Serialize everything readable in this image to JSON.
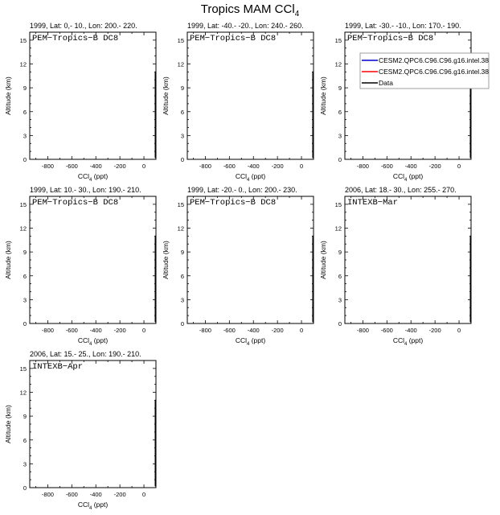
{
  "figure": {
    "title": "Tropics MAM CCl",
    "title_sub": "4"
  },
  "chart_data": [
    {
      "type": "line",
      "header": "1999, Lat: 0,- 10., Lon: 200.- 220.",
      "campaign": "PEM−Tropics−B DC8",
      "xlabel": "CCl",
      "xlabel_sub": "4",
      "xlabel_unit": " (ppt)",
      "ylabel": "Altitude (km)",
      "xlim": [
        -950,
        100
      ],
      "ylim": [
        0,
        16
      ],
      "xticks": [
        -800,
        -600,
        -400,
        -200,
        0
      ],
      "yticks": [
        0,
        3,
        6,
        9,
        12,
        15
      ],
      "series": [
        {
          "name": "Data",
          "color": "#000000",
          "x": [
            95,
            95,
            95,
            95,
            95,
            95,
            95,
            95
          ],
          "y": [
            0.2,
            1.5,
            3,
            4.5,
            6,
            7.5,
            9,
            11
          ]
        }
      ]
    },
    {
      "type": "line",
      "header": "1999, Lat: -40.- -20., Lon: 240.- 260.",
      "campaign": "PEM−Tropics−B DC8",
      "xlabel": "CCl",
      "xlabel_sub": "4",
      "xlabel_unit": " (ppt)",
      "ylabel": "Altitude (km)",
      "xlim": [
        -950,
        100
      ],
      "ylim": [
        0,
        16
      ],
      "xticks": [
        -800,
        -600,
        -400,
        -200,
        0
      ],
      "yticks": [
        0,
        3,
        6,
        9,
        12,
        15
      ],
      "series": [
        {
          "name": "Data",
          "color": "#000000",
          "x": [
            95,
            95,
            95,
            95,
            95,
            95,
            95,
            95
          ],
          "y": [
            0.2,
            1.5,
            3,
            4.5,
            6,
            7.5,
            9,
            11
          ]
        }
      ]
    },
    {
      "type": "line",
      "header": "1999, Lat: -30.- -10., Lon: 170.- 190.",
      "campaign": "PEM−Tropics−B DC8",
      "xlabel": "CCl",
      "xlabel_sub": "4",
      "xlabel_unit": " (ppt)",
      "ylabel": "Altitude (km)",
      "xlim": [
        -950,
        100
      ],
      "ylim": [
        0,
        16
      ],
      "xticks": [
        -800,
        -600,
        -400,
        -200,
        0
      ],
      "yticks": [
        0,
        3,
        6,
        9,
        12,
        15
      ],
      "legend": {
        "placement": "top-right",
        "entries": [
          {
            "label": "CESM2.QPC6.C96.C96.g16.intel.38",
            "color": "#0000cc"
          },
          {
            "label": "CESM2.QPC6.C96.C96.g16.intel.38",
            "color": "#ff0000"
          },
          {
            "label": "Data",
            "color": "#000000"
          }
        ]
      },
      "series": [
        {
          "name": "Data",
          "color": "#000000",
          "x": [
            95,
            95,
            95,
            95,
            95,
            95,
            95,
            95
          ],
          "y": [
            0.2,
            1.5,
            3,
            4.5,
            6,
            7.5,
            9,
            11
          ]
        }
      ]
    },
    {
      "type": "line",
      "header": "1999, Lat: 10.- 30., Lon: 190.- 210.",
      "campaign": "PEM−Tropics−B DC8",
      "xlabel": "CCl",
      "xlabel_sub": "4",
      "xlabel_unit": " (ppt)",
      "ylabel": "Altitude (km)",
      "xlim": [
        -950,
        100
      ],
      "ylim": [
        0,
        16
      ],
      "xticks": [
        -800,
        -600,
        -400,
        -200,
        0
      ],
      "yticks": [
        0,
        3,
        6,
        9,
        12,
        15
      ],
      "series": [
        {
          "name": "Data",
          "color": "#000000",
          "x": [
            95,
            95,
            95,
            95,
            95,
            95,
            95,
            95
          ],
          "y": [
            0.2,
            1.5,
            3,
            4.5,
            6,
            7.5,
            9,
            11
          ]
        }
      ]
    },
    {
      "type": "line",
      "header": "1999, Lat: -20.- 0., Lon: 200.- 230.",
      "campaign": "PEM−Tropics−B DC8",
      "xlabel": "CCl",
      "xlabel_sub": "4",
      "xlabel_unit": " (ppt)",
      "ylabel": "Altitude (km)",
      "xlim": [
        -950,
        100
      ],
      "ylim": [
        0,
        16
      ],
      "xticks": [
        -800,
        -600,
        -400,
        -200,
        0
      ],
      "yticks": [
        0,
        3,
        6,
        9,
        12,
        15
      ],
      "series": [
        {
          "name": "Data",
          "color": "#000000",
          "x": [
            95,
            95,
            95,
            95,
            95,
            95,
            95,
            95
          ],
          "y": [
            0.2,
            1.5,
            3,
            4.5,
            6,
            7.5,
            9,
            11
          ]
        }
      ]
    },
    {
      "type": "line",
      "header": "2006, Lat: 18.- 30., Lon: 255.- 270.",
      "campaign": "INTEXB−Mar",
      "xlabel": "CCl",
      "xlabel_sub": "4",
      "xlabel_unit": " (ppt)",
      "ylabel": "Altitude (km)",
      "xlim": [
        -950,
        100
      ],
      "ylim": [
        0,
        16
      ],
      "xticks": [
        -800,
        -600,
        -400,
        -200,
        0
      ],
      "yticks": [
        0,
        3,
        6,
        9,
        12,
        15
      ],
      "series": [
        {
          "name": "Data",
          "color": "#000000",
          "x": [
            95,
            95,
            95,
            95,
            95,
            95,
            95,
            95
          ],
          "y": [
            0.2,
            1.5,
            3,
            4.5,
            6,
            7.5,
            9,
            11
          ]
        }
      ]
    },
    {
      "type": "line",
      "header": "2006, Lat: 15.- 25., Lon: 190.- 210.",
      "campaign": "INTEXB−Apr",
      "xlabel": "CCl",
      "xlabel_sub": "4",
      "xlabel_unit": " (ppt)",
      "ylabel": "Altitude (km)",
      "xlim": [
        -950,
        100
      ],
      "ylim": [
        0,
        16
      ],
      "xticks": [
        -800,
        -600,
        -400,
        -200,
        0
      ],
      "yticks": [
        0,
        3,
        6,
        9,
        12,
        15
      ],
      "series": [
        {
          "name": "Data",
          "color": "#000000",
          "x": [
            95,
            95,
            95,
            95,
            95,
            95,
            95,
            95
          ],
          "y": [
            0.2,
            1.5,
            3,
            4.5,
            6,
            7.5,
            9,
            11
          ]
        }
      ]
    }
  ]
}
